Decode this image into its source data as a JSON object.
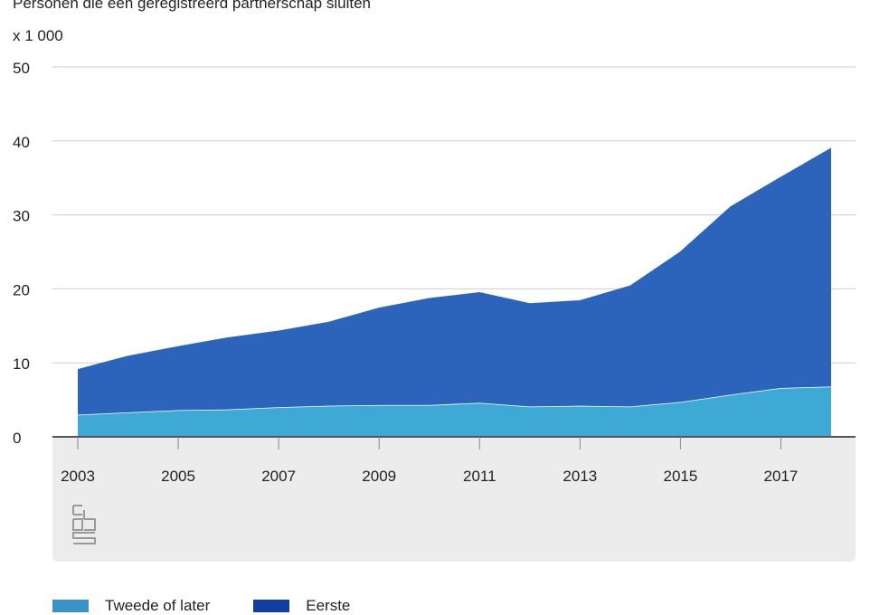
{
  "chart_data": {
    "type": "area",
    "stacked": true,
    "title": "Personen die een geregistreerd partnerschap sluiten",
    "unit_label": "x 1 000",
    "x": [
      2003,
      2004,
      2005,
      2006,
      2007,
      2008,
      2009,
      2010,
      2011,
      2012,
      2013,
      2014,
      2015,
      2016,
      2017,
      2018
    ],
    "x_tick_labels": [
      "2003",
      "2005",
      "2007",
      "2009",
      "2011",
      "2013",
      "2015",
      "2017"
    ],
    "y_ticks": [
      "0",
      "10",
      "20",
      "30",
      "40",
      "50"
    ],
    "ylim": [
      0,
      50
    ],
    "grid": true,
    "legend_position": "bottom",
    "series": [
      {
        "name": "Tweede of later",
        "color": "#3fa9d6",
        "values": [
          3.0,
          3.3,
          3.6,
          3.7,
          4.0,
          4.2,
          4.3,
          4.3,
          4.6,
          4.1,
          4.2,
          4.1,
          4.7,
          5.7,
          6.6,
          6.8
        ]
      },
      {
        "name": "Eerste",
        "color": "#2c64bc",
        "values": [
          6.1,
          7.6,
          8.6,
          9.7,
          10.3,
          11.3,
          13.1,
          14.4,
          14.9,
          13.9,
          14.2,
          16.3,
          20.3,
          25.4,
          28.5,
          32.2
        ]
      }
    ]
  },
  "legend": {
    "items": [
      {
        "label": "Tweede of later",
        "color": "#3a92c8"
      },
      {
        "label": "Eerste",
        "color": "#0f3ea3"
      }
    ]
  },
  "logo": {
    "icon": "cbs-logo-icon"
  }
}
